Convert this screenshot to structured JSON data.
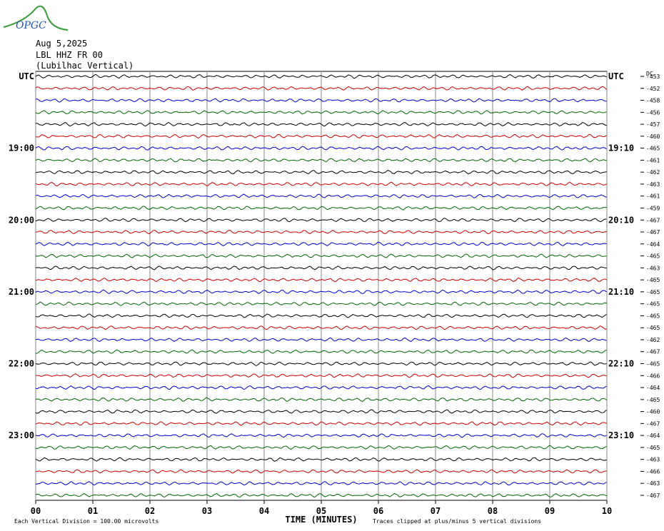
{
  "header": {
    "logo": "OPGC",
    "date": "Aug 5,2025",
    "station": "LBL HHZ FR 00",
    "location": "(Lubilhac Vertical)"
  },
  "dc_label": "DC",
  "footer": {
    "division": "Each Vertical Division =  100.00 microvolts",
    "clipping": "Traces clipped at plus/minus 5 vertical divisions"
  },
  "chart_data": {
    "type": "helicorder",
    "x_label": "TIME (MINUTES)",
    "xlim": [
      0,
      10
    ],
    "xticks": [
      {
        "value": 0,
        "label": "00"
      },
      {
        "value": 1,
        "label": "01"
      },
      {
        "value": 2,
        "label": "02"
      },
      {
        "value": 3,
        "label": "03"
      },
      {
        "value": 4,
        "label": "04"
      },
      {
        "value": 5,
        "label": "05"
      },
      {
        "value": 6,
        "label": "06"
      },
      {
        "value": 7,
        "label": "07"
      },
      {
        "value": 8,
        "label": "08"
      },
      {
        "value": 9,
        "label": "09"
      },
      {
        "value": 10,
        "label": "10"
      }
    ],
    "grid": true,
    "colors": [
      "#000000",
      "#cc0000",
      "#0000cc",
      "#006600"
    ],
    "left_labels": [
      "UTC",
      null,
      null,
      null,
      null,
      null,
      "19:00",
      null,
      null,
      null,
      null,
      null,
      "20:00",
      null,
      null,
      null,
      null,
      null,
      "21:00",
      null,
      null,
      null,
      null,
      null,
      "22:00",
      null,
      null,
      null,
      null,
      null,
      "23:00",
      null,
      null,
      null,
      null,
      null
    ],
    "right_labels": [
      "UTC",
      null,
      null,
      null,
      null,
      null,
      "19:10",
      null,
      null,
      null,
      null,
      null,
      "20:10",
      null,
      null,
      null,
      null,
      null,
      "21:10",
      null,
      null,
      null,
      null,
      null,
      "22:10",
      null,
      null,
      null,
      null,
      null,
      "23:10",
      null,
      null,
      null,
      null,
      null
    ],
    "dc_offsets": [
      -453,
      -452,
      -458,
      -456,
      -457,
      -460,
      -465,
      -461,
      -462,
      -463,
      -461,
      -459,
      -467,
      -467,
      -464,
      -465,
      -463,
      -465,
      -465,
      -465,
      -465,
      -465,
      -462,
      -467,
      -465,
      -466,
      -464,
      -465,
      -460,
      -467,
      -464,
      -465,
      -463,
      -466,
      -463,
      -467
    ]
  }
}
